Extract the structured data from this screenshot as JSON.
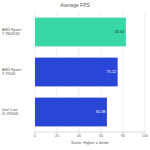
{
  "chart_data": {
    "type": "bar",
    "orientation": "horizontal",
    "title": "Average FPS",
    "categories": [
      "AMD Ryzen 7 7800X3D",
      "AMD Ryzen 9 7950X",
      "Intel Core i9-13900K"
    ],
    "values": [
      82.64,
      75.12,
      65.38
    ],
    "colors": [
      "#3ad7a6",
      "#2a46d8",
      "#2a46d8"
    ],
    "x_label": "Score: Higher is better",
    "xlim": [
      0,
      100
    ],
    "xticks": [
      0,
      20,
      40,
      60,
      80,
      100
    ],
    "grid": true,
    "data_labels": true
  }
}
